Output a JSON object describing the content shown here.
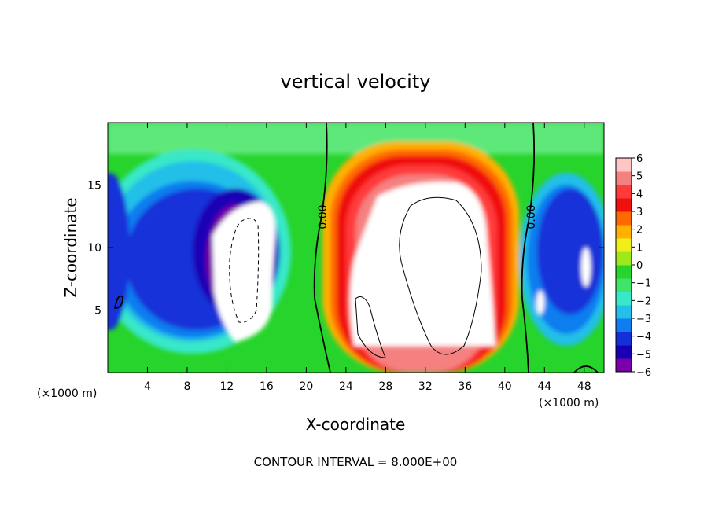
{
  "chart_data": {
    "type": "heatmap",
    "title": "vertical velocity",
    "xlabel": "X-coordinate",
    "ylabel": "Z-coordinate",
    "x_unit": "(×1000 m)",
    "xlim": [
      0,
      50
    ],
    "ylim": [
      0,
      20
    ],
    "x_ticks": [
      4,
      8,
      12,
      16,
      20,
      24,
      28,
      32,
      36,
      40,
      44,
      48
    ],
    "y_ticks": [
      5,
      10,
      15
    ],
    "footnote": "CONTOUR INTERVAL = 8.000E+00",
    "contour_labels": [
      "0.00",
      "0.00"
    ],
    "colorbar": {
      "min": -6,
      "max": 6,
      "tick_labels": [
        "6",
        "5",
        "4",
        "3",
        "2",
        "1",
        "0",
        "−1",
        "−2",
        "−3",
        "−4",
        "−5",
        "−6"
      ],
      "colors": [
        "#7a00a8",
        "#1a00b5",
        "#1430d8",
        "#0f7df0",
        "#22bfe8",
        "#39e8c8",
        "#3fe56a",
        "#27d42c",
        "#9ee81e",
        "#f2ee1a",
        "#ffb000",
        "#ff6a00",
        "#f01010",
        "#ff3a3a",
        "#f58080",
        "#ffc4c4"
      ]
    }
  }
}
